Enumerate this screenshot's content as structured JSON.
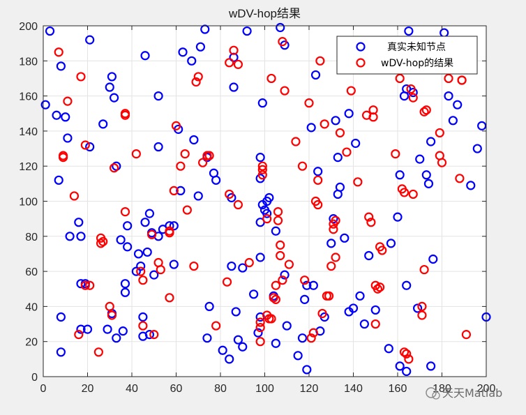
{
  "chart_data": {
    "type": "scatter",
    "title": "wDV-hop结果",
    "xlim": [
      0,
      200
    ],
    "ylim": [
      0,
      200
    ],
    "xticks": [
      0,
      20,
      40,
      60,
      80,
      100,
      120,
      140,
      160,
      180,
      200
    ],
    "yticks": [
      0,
      20,
      40,
      60,
      80,
      100,
      120,
      140,
      160,
      180,
      200
    ],
    "grid": true,
    "legend_position": "top-right",
    "marker": "open-circle",
    "series": [
      {
        "name": "真实未知节点",
        "color": "#0000ff",
        "points": [
          [
            3,
            197
          ],
          [
            1,
            155
          ],
          [
            6,
            149
          ],
          [
            7,
            112
          ],
          [
            8,
            177
          ],
          [
            10,
            148
          ],
          [
            11,
            136
          ],
          [
            12,
            80
          ],
          [
            8,
            34
          ],
          [
            8,
            14
          ],
          [
            16,
            88
          ],
          [
            17,
            80
          ],
          [
            17,
            53
          ],
          [
            17,
            27
          ],
          [
            19,
            53
          ],
          [
            20,
            27
          ],
          [
            21,
            131
          ],
          [
            21,
            192
          ],
          [
            27,
            144
          ],
          [
            29,
            27
          ],
          [
            30,
            165
          ],
          [
            31,
            171
          ],
          [
            31,
            36
          ],
          [
            32,
            159
          ],
          [
            33,
            120
          ],
          [
            33,
            22
          ],
          [
            35,
            78
          ],
          [
            36,
            26
          ],
          [
            37,
            53
          ],
          [
            37,
            48
          ],
          [
            38,
            74
          ],
          [
            38,
            86
          ],
          [
            42,
            60
          ],
          [
            43,
            70
          ],
          [
            44,
            63
          ],
          [
            45,
            34
          ],
          [
            45,
            23
          ],
          [
            46,
            183
          ],
          [
            46,
            88
          ],
          [
            47,
            71
          ],
          [
            48,
            93
          ],
          [
            48,
            24
          ],
          [
            49,
            82
          ],
          [
            50,
            58
          ],
          [
            52,
            80
          ],
          [
            52,
            160
          ],
          [
            52,
            131
          ],
          [
            54,
            84
          ],
          [
            57,
            86
          ],
          [
            59,
            86
          ],
          [
            59,
            64
          ],
          [
            61,
            141
          ],
          [
            62,
            106
          ],
          [
            63,
            185
          ],
          [
            67,
            180
          ],
          [
            68,
            135
          ],
          [
            70,
            103
          ],
          [
            71,
            188
          ],
          [
            73,
            198
          ],
          [
            74,
            125
          ],
          [
            74,
            22
          ],
          [
            75,
            40
          ],
          [
            77,
            116
          ],
          [
            78,
            112
          ],
          [
            81,
            15
          ],
          [
            84,
            10
          ],
          [
            85,
            102
          ],
          [
            85,
            63
          ],
          [
            86,
            182
          ],
          [
            86,
            165
          ],
          [
            87,
            37
          ],
          [
            88,
            21
          ],
          [
            90,
            62
          ],
          [
            90,
            17
          ],
          [
            92,
            197
          ],
          [
            95,
            47
          ],
          [
            97,
            25
          ],
          [
            98,
            125
          ],
          [
            98,
            113
          ],
          [
            98,
            88
          ],
          [
            98,
            68
          ],
          [
            98,
            34
          ],
          [
            99,
            98
          ],
          [
            99,
            156
          ],
          [
            100,
            95
          ],
          [
            101,
            93
          ],
          [
            101,
            100
          ],
          [
            102,
            102
          ],
          [
            104,
            46
          ],
          [
            105,
            19
          ],
          [
            105,
            83
          ],
          [
            107,
            199
          ],
          [
            109,
            58
          ],
          [
            109,
            189
          ],
          [
            110,
            29
          ],
          [
            115,
            12
          ],
          [
            117,
            22
          ],
          [
            118,
            44
          ],
          [
            119,
            52
          ],
          [
            119,
            4
          ],
          [
            121,
            142
          ],
          [
            122,
            52
          ],
          [
            123,
            172
          ],
          [
            124,
            117
          ],
          [
            125,
            26
          ],
          [
            127,
            34
          ],
          [
            130,
            76
          ],
          [
            131,
            90
          ],
          [
            132,
            146
          ],
          [
            133,
            104
          ],
          [
            133,
            125
          ],
          [
            134,
            108
          ],
          [
            136,
            79
          ],
          [
            138,
            37
          ],
          [
            138,
            150
          ],
          [
            140,
            39
          ],
          [
            141,
            133
          ],
          [
            143,
            46
          ],
          [
            145,
            30
          ],
          [
            147,
            69
          ],
          [
            150,
            38
          ],
          [
            156,
            16
          ],
          [
            157,
            76
          ],
          [
            160,
            91
          ],
          [
            161,
            6
          ],
          [
            161,
            115
          ],
          [
            163,
            160
          ],
          [
            164,
            52
          ],
          [
            164,
            164
          ],
          [
            164,
            3
          ],
          [
            165,
            197
          ],
          [
            167,
            162
          ],
          [
            169,
            39
          ],
          [
            170,
            124
          ],
          [
            173,
            115
          ],
          [
            174,
            110
          ],
          [
            175,
            134
          ],
          [
            175,
            6
          ],
          [
            176,
            67
          ],
          [
            181,
            196
          ],
          [
            183,
            160
          ],
          [
            185,
            146
          ],
          [
            187,
            155
          ],
          [
            193,
            109
          ],
          [
            196,
            130
          ],
          [
            198,
            143
          ],
          [
            200,
            34
          ]
        ]
      },
      {
        "name": "wDV-hop的结果",
        "color": "#ff0000",
        "points": [
          [
            7,
            185
          ],
          [
            9,
            126
          ],
          [
            9,
            125
          ],
          [
            11,
            157
          ],
          [
            14,
            103
          ],
          [
            16,
            24
          ],
          [
            17,
            171
          ],
          [
            19,
            52
          ],
          [
            19,
            132
          ],
          [
            21,
            52
          ],
          [
            25,
            14
          ],
          [
            26,
            79
          ],
          [
            27,
            77
          ],
          [
            26,
            76
          ],
          [
            30,
            40
          ],
          [
            31,
            35
          ],
          [
            32,
            119
          ],
          [
            37,
            94
          ],
          [
            37,
            150
          ],
          [
            37,
            149
          ],
          [
            42,
            127
          ],
          [
            44,
            60
          ],
          [
            45,
            55
          ],
          [
            45,
            29
          ],
          [
            49,
            81
          ],
          [
            50,
            24
          ],
          [
            52,
            65
          ],
          [
            53,
            61
          ],
          [
            57,
            45
          ],
          [
            57,
            82
          ],
          [
            57,
            83
          ],
          [
            59,
            106
          ],
          [
            60,
            143
          ],
          [
            62,
            120
          ],
          [
            64,
            127
          ],
          [
            65,
            95
          ],
          [
            68,
            63
          ],
          [
            69,
            168
          ],
          [
            70,
            171
          ],
          [
            72,
            122
          ],
          [
            74,
            126
          ],
          [
            75,
            126
          ],
          [
            78,
            29
          ],
          [
            83,
            54
          ],
          [
            84,
            104
          ],
          [
            84,
            179
          ],
          [
            86,
            186
          ],
          [
            88,
            178
          ],
          [
            88,
            98
          ],
          [
            93,
            65
          ],
          [
            98,
            31
          ],
          [
            98,
            28
          ],
          [
            98,
            20
          ],
          [
            99,
            120
          ],
          [
            99,
            118
          ],
          [
            99,
            115
          ],
          [
            101,
            35
          ],
          [
            101,
            90
          ],
          [
            102,
            33
          ],
          [
            103,
            33
          ],
          [
            103,
            170
          ],
          [
            104,
            45
          ],
          [
            105,
            52
          ],
          [
            105,
            44
          ],
          [
            106,
            94
          ],
          [
            106,
            89
          ],
          [
            107,
            75
          ],
          [
            107,
            69
          ],
          [
            108,
            191
          ],
          [
            108,
            55
          ],
          [
            109,
            163
          ],
          [
            111,
            64
          ],
          [
            114,
            134
          ],
          [
            117,
            120
          ],
          [
            118,
            55
          ],
          [
            120,
            156
          ],
          [
            121,
            22
          ],
          [
            122,
            25
          ],
          [
            123,
            100
          ],
          [
            124,
            98
          ],
          [
            124,
            112
          ],
          [
            125,
            180
          ],
          [
            126,
            36
          ],
          [
            127,
            144
          ],
          [
            128,
            46
          ],
          [
            129,
            46
          ],
          [
            130,
            63
          ],
          [
            131,
            87
          ],
          [
            131,
            84
          ],
          [
            132,
            89
          ],
          [
            132,
            68
          ],
          [
            134,
            139
          ],
          [
            137,
            128
          ],
          [
            139,
            163
          ],
          [
            142,
            111
          ],
          [
            146,
            149
          ],
          [
            147,
            91
          ],
          [
            148,
            88
          ],
          [
            149,
            152
          ],
          [
            149,
            148
          ],
          [
            150,
            52
          ],
          [
            150,
            30
          ],
          [
            151,
            50
          ],
          [
            152,
            51
          ],
          [
            152,
            74
          ],
          [
            153,
            72
          ],
          [
            159,
            127
          ],
          [
            161,
            170
          ],
          [
            162,
            107
          ],
          [
            163,
            105
          ],
          [
            163,
            14
          ],
          [
            164,
            13
          ],
          [
            165,
            10
          ],
          [
            167,
            104
          ],
          [
            167,
            159
          ],
          [
            166,
            164
          ],
          [
            171,
            40
          ],
          [
            171,
            35
          ],
          [
            172,
            61
          ],
          [
            172,
            151
          ],
          [
            173,
            152
          ],
          [
            179,
            126
          ],
          [
            180,
            122
          ],
          [
            179,
            139
          ],
          [
            183,
            170
          ],
          [
            184,
            181
          ],
          [
            188,
            113
          ],
          [
            189,
            169
          ],
          [
            189,
            169
          ],
          [
            191,
            24
          ]
        ]
      }
    ]
  },
  "watermark": {
    "text": "天天Matlab"
  }
}
